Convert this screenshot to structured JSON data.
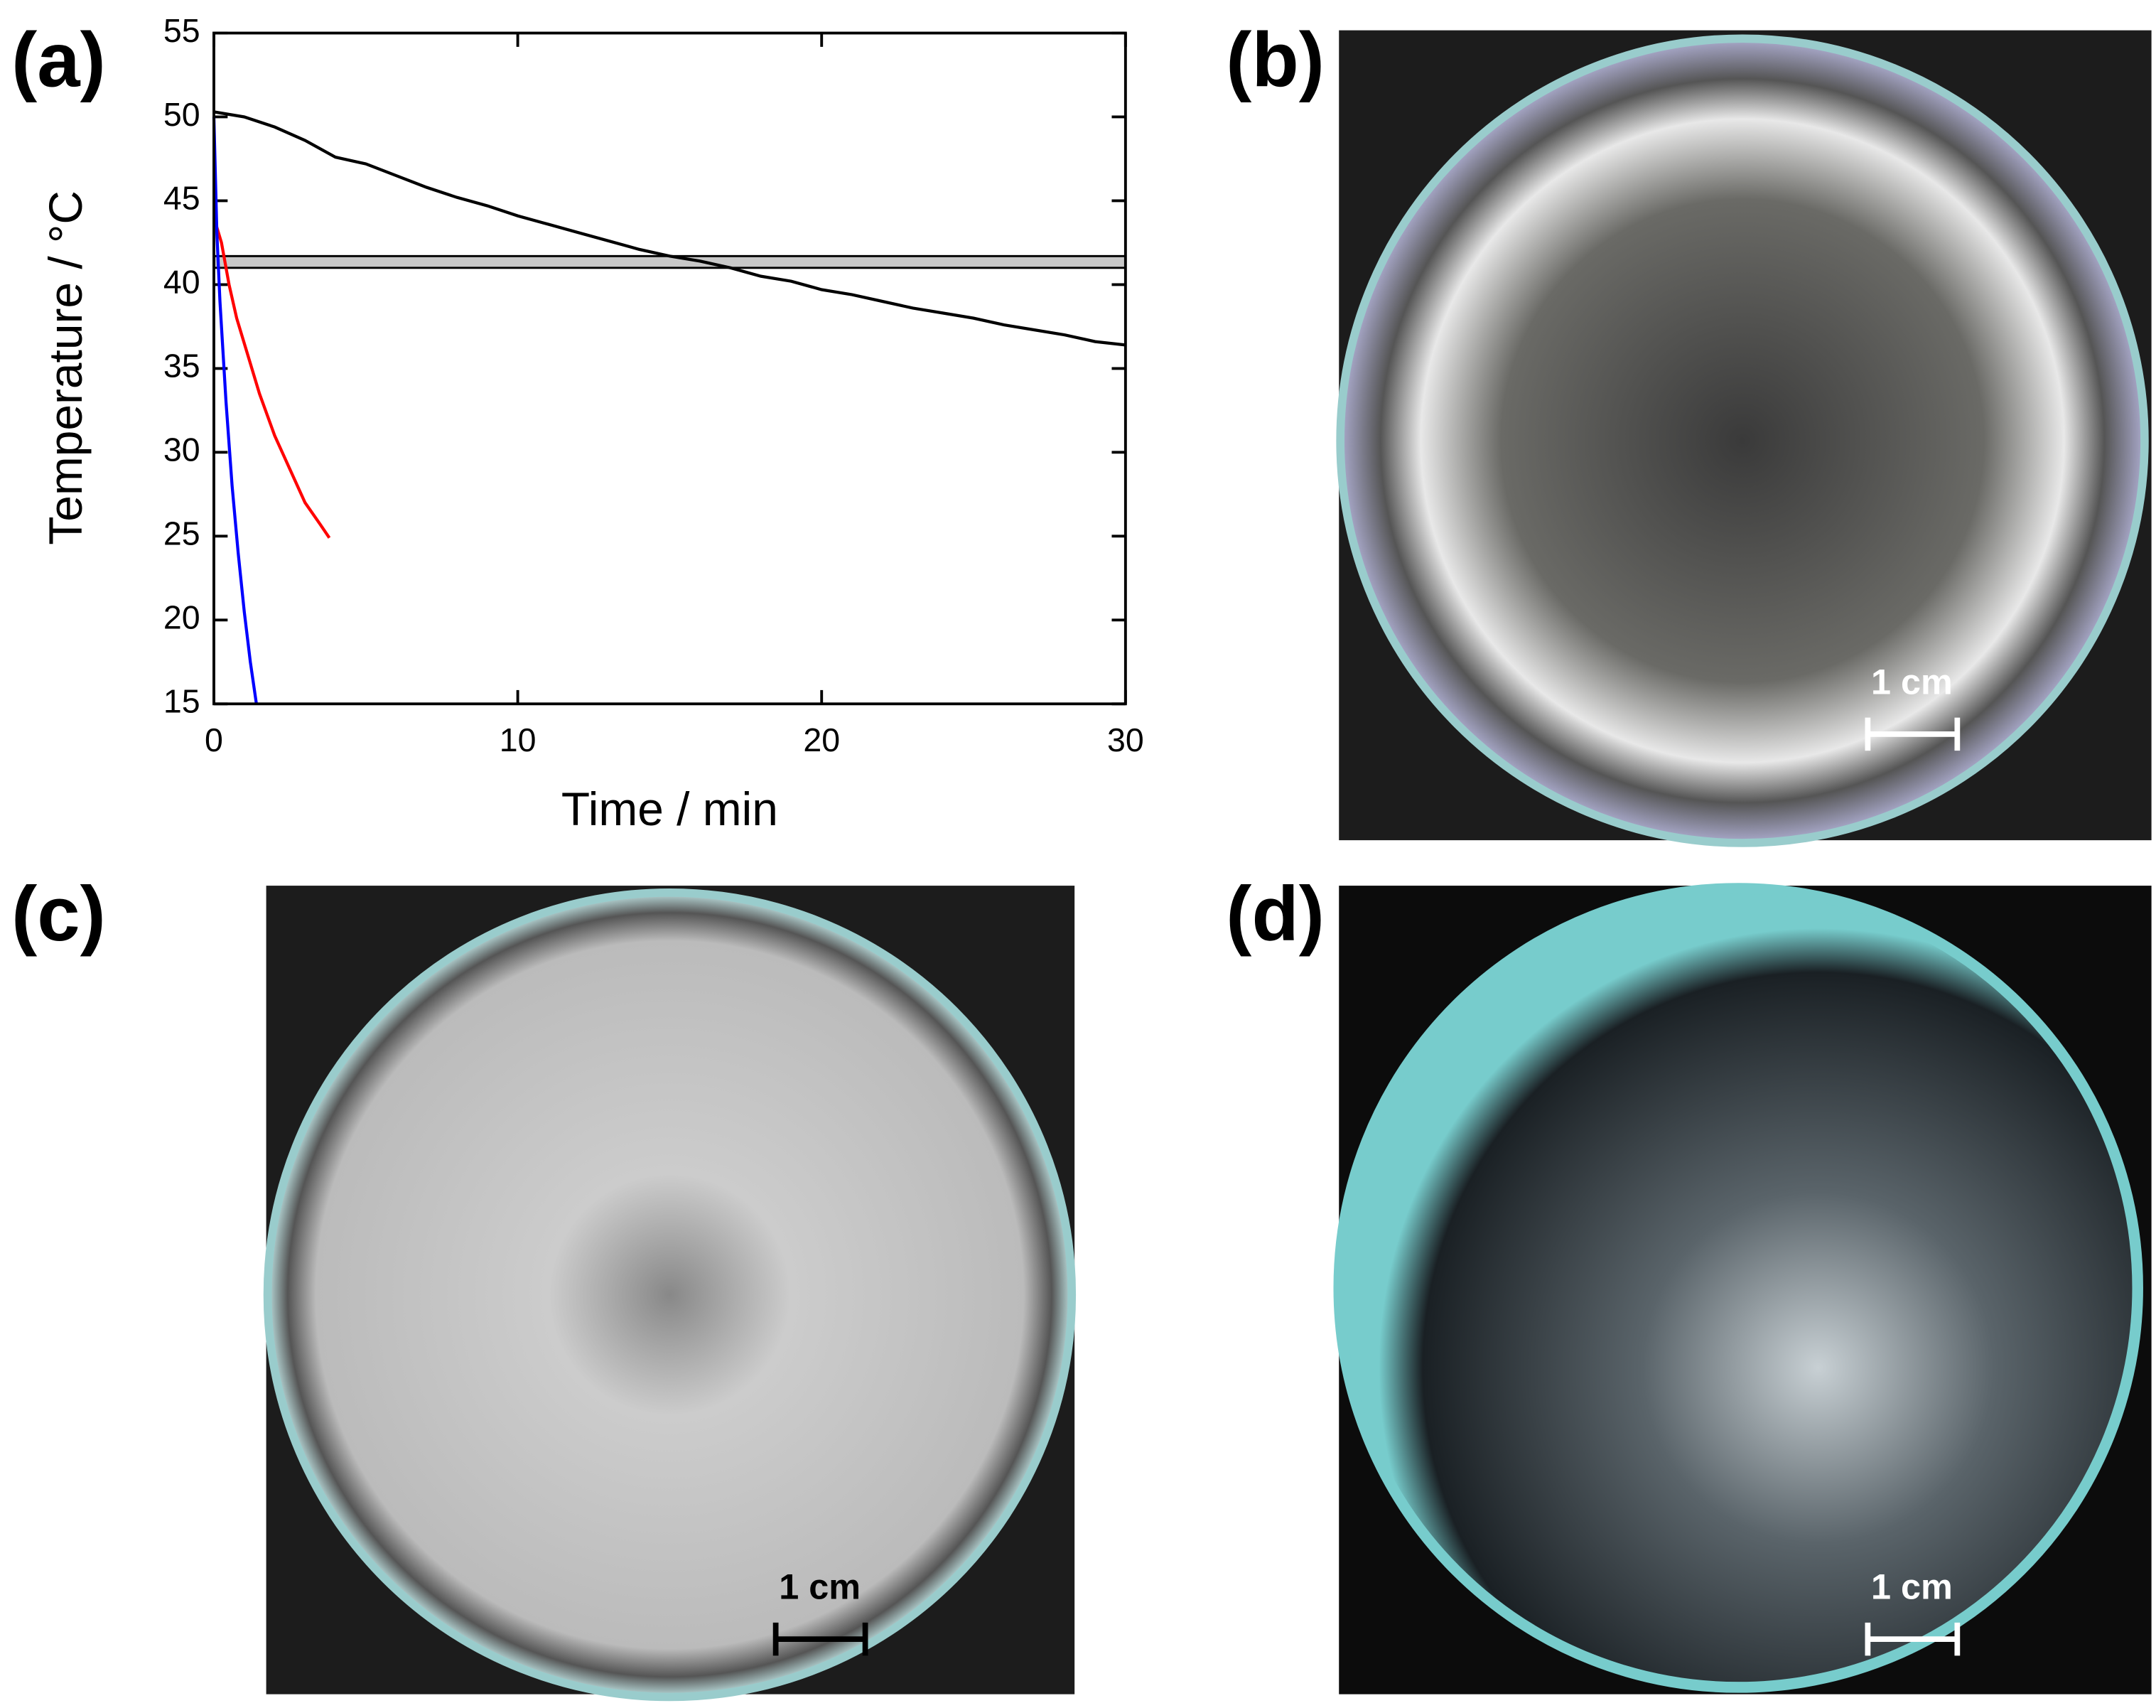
{
  "chart_data": {
    "type": "line",
    "x_label": "Time / min",
    "y_label": "Temperature / °C",
    "xlim": [
      0,
      30
    ],
    "ylim": [
      15,
      55
    ],
    "xticks": [
      0,
      10,
      20,
      30
    ],
    "yticks": [
      15,
      20,
      25,
      30,
      35,
      40,
      45,
      50,
      55
    ],
    "band": [
      41,
      41.7
    ],
    "band_color": "#c8c8c8",
    "series": [
      {
        "color": "#000000",
        "x": [
          0,
          1,
          2,
          3,
          4,
          5,
          6,
          7,
          8,
          9,
          10,
          11,
          12,
          13,
          14,
          15,
          16,
          17,
          18,
          19,
          20,
          21,
          22,
          23,
          24,
          25,
          26,
          27,
          28,
          29,
          30
        ],
        "values": [
          50.3,
          50,
          49.4,
          48.6,
          47.6,
          47.2,
          46.5,
          45.8,
          45.2,
          44.7,
          44.1,
          43.6,
          43.1,
          42.6,
          42.1,
          41.7,
          41.4,
          41,
          40.5,
          40.2,
          39.7,
          39.4,
          39,
          38.6,
          38.3,
          38,
          37.6,
          37.3,
          37,
          36.6,
          36.4
        ]
      },
      {
        "color": "#ff0000",
        "x": [
          0,
          0.25,
          0.5,
          0.75,
          1,
          1.5,
          2,
          2.5,
          3,
          3.5,
          3.8
        ],
        "values": [
          44,
          42.5,
          40,
          38,
          36.5,
          33.5,
          31,
          29,
          27,
          25.7,
          24.9
        ]
      },
      {
        "color": "#0000ff",
        "x": [
          0,
          0.1,
          0.2,
          0.4,
          0.6,
          0.8,
          1,
          1.2,
          1.4
        ],
        "values": [
          50,
          43,
          39,
          33,
          28,
          24,
          20.5,
          17.5,
          15
        ]
      }
    ]
  },
  "panels": {
    "labels": [
      "(a)",
      "(b)",
      "(c)",
      "(d)"
    ],
    "scale_labels": [
      "1 cm",
      "1 cm",
      "1 cm"
    ]
  }
}
